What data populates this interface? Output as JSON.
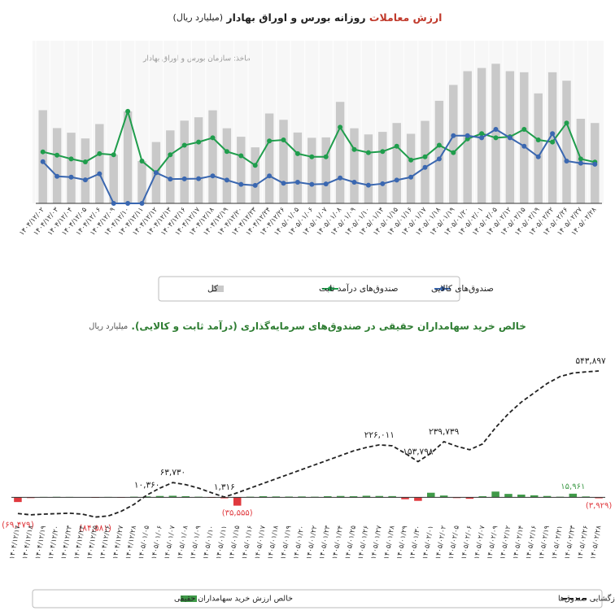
{
  "chart_data": [
    {
      "type": "combo",
      "title_parts": [
        "ارزش معاملات",
        "روزانه بورس و اوراق بهادار",
        "(میلیارد ریال)"
      ],
      "source": "ماخذ: سازمان بورس و اوراق بهادار",
      "categories": [
        "۱۴۰۴/۱۲/۰۲",
        "۱۴۰۴/۱۲/۰۳",
        "۱۴۰۴/۱۲/۰۴",
        "۱۴۰۴/۱۲/۰۵",
        "۱۴۰۴/۱۲/۰۶",
        "۱۴۰۴/۱۲/۰۹",
        "۱۴۰۴/۱۲/۱۰",
        "۱۴۰۴/۱۲/۱۱",
        "۱۴۰۴/۱۲/۱۲",
        "۱۴۰۴/۱۲/۱۳",
        "۱۴۰۴/۱۲/۱۶",
        "۱۴۰۴/۱۲/۱۷",
        "۱۴۰۴/۱۲/۱۸",
        "۱۴۰۴/۱۲/۱۹",
        "۱۴۰۴/۱۲/۲۰",
        "۱۴۰۴/۱۲/۲۳",
        "۱۴۰۴/۱۲/۲۴",
        "۱۴۰۴/۱۲/۲۶",
        "۱۴۰۵/۰۱/۰۵",
        "۱۴۰۵/۰۱/۰۶",
        "۱۴۰۵/۰۱/۰۷",
        "۱۴۰۵/۰۱/۰۸",
        "۱۴۰۵/۰۱/۰۹",
        "۱۴۰۵/۰۱/۱۰",
        "۱۴۰۵/۰۱/۱۴",
        "۱۴۰۵/۰۱/۱۵",
        "۱۴۰۵/۰۱/۱۶",
        "۱۴۰۵/۰۱/۱۷",
        "۱۴۰۵/۰۱/۱۸",
        "۱۴۰۵/۰۱/۱۹",
        "۱۴۰۵/۰۱/۲۰",
        "۱۴۰۵/۰۲/۰۱",
        "۱۴۰۵/۰۲/۰۵",
        "۱۴۰۵/۰۲/۱۲",
        "۱۴۰۵/۰۲/۱۵",
        "۱۴۰۵/۰۲/۱۹",
        "۱۴۰۵/۰۲/۲۲",
        "۱۴۰۵/۰۲/۲۶",
        "۱۴۰۵/۰۲/۲۷",
        "۱۴۰۵/۰۲/۲۸"
      ],
      "series": [
        {
          "name": "کل",
          "kind": "bar",
          "color": "#c9c9c9",
          "values": [
            4405,
            3560,
            3340,
            3070,
            3750,
            2300,
            4350,
            2000,
            2900,
            3450,
            3910,
            4070,
            4400,
            3550,
            3150,
            2650,
            4250,
            3950,
            3350,
            3100,
            3120,
            4800,
            3550,
            3260,
            3380,
            3800,
            3290,
            3900,
            4850,
            5600,
            6250,
            6400,
            6600,
            6250,
            6200,
            5200,
            6200,
            5800,
            4000,
            3800
          ]
        },
        {
          "name": "صندوق‌های درآمد ثابت",
          "kind": "line",
          "color": "#1f9d4c",
          "values": [
            2435,
            2280,
            2100,
            1960,
            2350,
            2300,
            4350,
            2000,
            1450,
            2300,
            2750,
            2900,
            3100,
            2450,
            2250,
            1800,
            2950,
            3000,
            2350,
            2200,
            2200,
            3600,
            2550,
            2400,
            2450,
            2700,
            2050,
            2200,
            2750,
            2400,
            3050,
            3300,
            3100,
            3150,
            3500,
            3000,
            2900,
            3800,
            2100,
            1950
          ]
        },
        {
          "name": "صندوق‌های کالایی",
          "kind": "line",
          "color": "#3a67b0",
          "values": [
            1970,
            1280,
            1240,
            1110,
            1400,
            0,
            0,
            0,
            1450,
            1150,
            1160,
            1170,
            1300,
            1100,
            900,
            850,
            1300,
            950,
            1000,
            900,
            920,
            1200,
            1000,
            860,
            930,
            1100,
            1240,
            1700,
            2100,
            3200,
            3200,
            3100,
            3500,
            3100,
            2700,
            2200,
            3300,
            2000,
            1900,
            1850
          ]
        }
      ],
      "ylim": [
        0,
        7500
      ]
    },
    {
      "type": "combo",
      "title": "خالص خرید سهامداران حقیقی در صندوق‌های سرمایه‌گذاری (درآمد ثابت و کالایی).",
      "subtitle": "میلیارد ریال",
      "categories": [
        "۱۴۰۴/۱۲/۱۷",
        "۱۴۰۴/۱۲/۱۸",
        "۱۴۰۴/۱۲/۱۹",
        "۱۴۰۴/۱۲/۲۰",
        "۱۴۰۴/۱۲/۲۳",
        "۱۴۰۴/۱۲/۲۴",
        "۱۴۰۴/۱۲/۲۵",
        "۱۴۰۴/۱۲/۲۶",
        "۱۴۰۴/۱۲/۲۷",
        "۱۴۰۴/۱۲/۲۸",
        "۱۴۰۵/۰۱/۰۵",
        "۱۴۰۵/۰۱/۰۶",
        "۱۴۰۵/۰۱/۰۷",
        "۱۴۰۵/۰۱/۰۸",
        "۱۴۰۵/۰۱/۰۹",
        "۱۴۰۵/۰۱/۱۰",
        "۱۴۰۵/۰۱/۱۱",
        "۱۴۰۵/۰۱/۱۵",
        "۱۴۰۵/۰۱/۱۶",
        "۱۴۰۵/۰۱/۱۷",
        "۱۴۰۵/۰۱/۱۸",
        "۱۴۰۵/۰۱/۱۹",
        "۱۴۰۵/۰۱/۲۰",
        "۱۴۰۵/۰۱/۲۲",
        "۱۴۰۵/۰۱/۲۳",
        "۱۴۰۵/۰۱/۲۴",
        "۱۴۰۵/۰۱/۲۵",
        "۱۴۰۵/۰۱/۲۶",
        "۱۴۰۵/۰۱/۲۷",
        "۱۴۰۵/۰۱/۲۸",
        "۱۴۰۵/۰۱/۲۹",
        "۱۴۰۵/۰۱/۳۰",
        "۱۴۰۵/۰۲/۰۱",
        "۱۴۰۵/۰۲/۰۲",
        "۱۴۰۵/۰۲/۰۵",
        "۱۴۰۵/۰۲/۰۶",
        "۱۴۰۵/۰۲/۰۷",
        "۱۴۰۵/۰۲/۰۹",
        "۱۴۰۵/۰۲/۱۲",
        "۱۴۰۵/۰۲/۱۴",
        "۱۴۰۵/۰۲/۱۶",
        "۱۴۰۵/۰۲/۱۹",
        "۱۴۰۵/۰۲/۲۱",
        "۱۴۰۵/۰۲/۲۳",
        "۱۴۰۵/۰۲/۲۶",
        "۱۴۰۵/۰۲/۲۸"
      ],
      "series": [
        {
          "name": "خالص ارزش خرید سهامداران حقیقی",
          "kind": "bar",
          "color": "#3f9a48",
          "negative_color": "#e0393e",
          "values": [
            -20000,
            -3000,
            2000,
            2500,
            2000,
            1500,
            -2000,
            2000,
            -1500,
            3000,
            4000,
            6000,
            7000,
            5000,
            3000,
            -2000,
            -4000,
            -35555,
            3000,
            5000,
            4000,
            3500,
            4000,
            3000,
            5000,
            6000,
            5000,
            7000,
            6000,
            5500,
            -8000,
            -15000,
            20000,
            8000,
            -3000,
            -6000,
            5000,
            25000,
            15000,
            12000,
            9000,
            6000,
            3000,
            15961,
            4000,
            -3929
          ],
          "value_labels": [
            null,
            null,
            null,
            null,
            null,
            null,
            null,
            null,
            null,
            null,
            null,
            null,
            null,
            null,
            null,
            null,
            null,
            "(۳۵,۵۵۵)",
            null,
            null,
            null,
            null,
            null,
            null,
            null,
            null,
            null,
            null,
            null,
            null,
            null,
            null,
            null,
            null,
            null,
            null,
            null,
            null,
            null,
            null,
            null,
            null,
            null,
            "۱۵,۹۶۱",
            null,
            "(۳,۹۲۹)"
          ]
        },
        {
          "name": "روند تجمعی خالص خرید سهامداران حقیقی از ابتدای بازگشایی صندوق‌ها",
          "kind": "line",
          "color": "#222222",
          "values": [
            -69479,
            -75000,
            -72000,
            -70000,
            -68000,
            -72000,
            -84581,
            -80000,
            -60000,
            -30000,
            10360,
            40000,
            63730,
            55000,
            40000,
            20000,
            1316,
            20000,
            40000,
            60000,
            80000,
            100000,
            120000,
            140000,
            160000,
            180000,
            200000,
            215000,
            226011,
            222000,
            190000,
            153798,
            190000,
            239739,
            220000,
            205000,
            230000,
            300000,
            360000,
            410000,
            450000,
            490000,
            520000,
            535000,
            540000,
            543897
          ],
          "value_labels": [
            "(۶۹,۴۷۹)",
            null,
            null,
            null,
            null,
            null,
            "(۸۴,۵۸۱)",
            null,
            null,
            null,
            "۱۰,۳۶۰",
            null,
            "۶۳,۷۳۰",
            null,
            null,
            null,
            "۱,۳۱۶",
            null,
            null,
            null,
            null,
            null,
            null,
            null,
            null,
            null,
            null,
            null,
            "۲۲۶,۰۱۱",
            null,
            null,
            "۱۵۳,۷۹۸",
            null,
            "۲۳۹,۷۳۹",
            null,
            null,
            null,
            null,
            null,
            null,
            null,
            null,
            null,
            null,
            null,
            "۵۴۳,۸۹۷"
          ]
        }
      ],
      "ylim": [
        -100000,
        600000
      ]
    }
  ]
}
